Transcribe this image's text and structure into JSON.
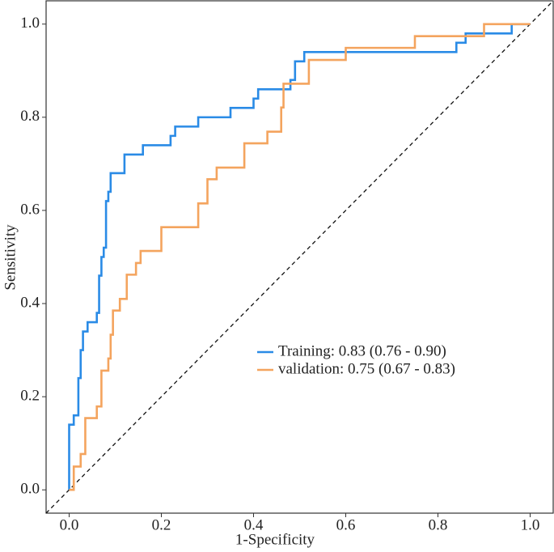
{
  "chart_data": {
    "type": "line",
    "xlabel": "1-Specificity",
    "ylabel": "Sensitivity",
    "xlim": [
      -0.05,
      1.05
    ],
    "ylim": [
      -0.05,
      1.05
    ],
    "xticks": [
      {
        "value": 0,
        "label": "0.0"
      },
      0.2,
      0.4,
      0.6,
      0.8,
      {
        "value": 1,
        "label": "1.0"
      }
    ],
    "yticks": [
      {
        "value": 0,
        "label": "0.0"
      },
      0.2,
      0.4,
      0.6,
      0.8,
      {
        "value": 1,
        "label": "1.0"
      }
    ],
    "grid": false,
    "legend": "center-right",
    "series": [
      {
        "name": "Training: 0.83 (0.76 - 0.90)",
        "color": "#2a8be6",
        "x": [
          0,
          0,
          0.01,
          0.01,
          0.02,
          0.02,
          0.025,
          0.025,
          0.03,
          0.03,
          0.04,
          0.04,
          0.06,
          0.06,
          0.065,
          0.065,
          0.07,
          0.07,
          0.075,
          0.075,
          0.08,
          0.08,
          0.085,
          0.085,
          0.09,
          0.09,
          0.12,
          0.12,
          0.16,
          0.16,
          0.22,
          0.22,
          0.23,
          0.23,
          0.28,
          0.28,
          0.35,
          0.35,
          0.4,
          0.4,
          0.41,
          0.41,
          0.48,
          0.48,
          0.49,
          0.49,
          0.51,
          0.51,
          0.84,
          0.84,
          0.86,
          0.86,
          0.96,
          0.96,
          1
        ],
        "values": [
          0,
          0.14,
          0.14,
          0.16,
          0.16,
          0.24,
          0.24,
          0.3,
          0.3,
          0.34,
          0.34,
          0.36,
          0.36,
          0.38,
          0.38,
          0.46,
          0.46,
          0.5,
          0.5,
          0.52,
          0.52,
          0.62,
          0.62,
          0.64,
          0.64,
          0.68,
          0.68,
          0.72,
          0.72,
          0.74,
          0.74,
          0.76,
          0.76,
          0.78,
          0.78,
          0.8,
          0.8,
          0.82,
          0.82,
          0.84,
          0.84,
          0.86,
          0.86,
          0.88,
          0.88,
          0.92,
          0.92,
          0.94,
          0.94,
          0.96,
          0.96,
          0.98,
          0.98,
          1,
          1
        ]
      },
      {
        "name": "validation: 0.75 (0.67 - 0.83)",
        "color": "#f4a45e",
        "x": [
          0,
          0.01,
          0.01,
          0.025,
          0.025,
          0.035,
          0.035,
          0.06,
          0.06,
          0.07,
          0.07,
          0.085,
          0.085,
          0.09,
          0.09,
          0.095,
          0.095,
          0.11,
          0.11,
          0.125,
          0.125,
          0.145,
          0.145,
          0.155,
          0.155,
          0.2,
          0.2,
          0.28,
          0.28,
          0.3,
          0.3,
          0.32,
          0.32,
          0.38,
          0.38,
          0.43,
          0.43,
          0.46,
          0.46,
          0.465,
          0.465,
          0.52,
          0.52,
          0.6,
          0.6,
          0.75,
          0.75,
          0.9,
          0.9,
          1
        ],
        "values": [
          0,
          0,
          0.05,
          0.05,
          0.077,
          0.077,
          0.154,
          0.154,
          0.179,
          0.179,
          0.256,
          0.256,
          0.282,
          0.282,
          0.333,
          0.333,
          0.385,
          0.385,
          0.41,
          0.41,
          0.462,
          0.462,
          0.487,
          0.487,
          0.513,
          0.513,
          0.564,
          0.564,
          0.615,
          0.615,
          0.667,
          0.667,
          0.692,
          0.692,
          0.744,
          0.744,
          0.769,
          0.769,
          0.821,
          0.821,
          0.872,
          0.872,
          0.923,
          0.923,
          0.949,
          0.949,
          0.974,
          0.974,
          1,
          1
        ]
      }
    ]
  }
}
